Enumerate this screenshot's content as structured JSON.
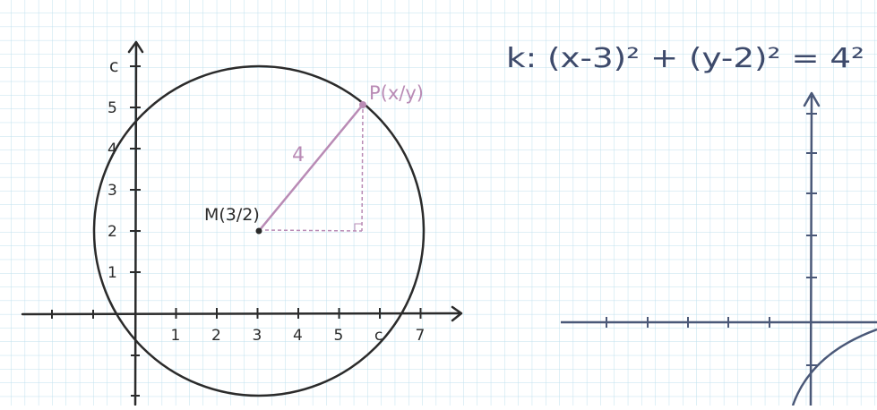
{
  "colors": {
    "background": "#ffffff",
    "grid": "#bfe0ee",
    "ink": "#2b2b2b",
    "axis_blue": "#4a5878",
    "accent": "#b98bb5",
    "equation": "#3d4a6b"
  },
  "left_figure": {
    "y_axis_label": "c",
    "x_ticks": [
      "1",
      "2",
      "3",
      "4",
      "5",
      "c",
      "7"
    ],
    "y_ticks": [
      "1",
      "2",
      "3",
      "4",
      "5"
    ],
    "center": {
      "label": "M(3/2)",
      "x": 3,
      "y": 2
    },
    "point": {
      "label": "P(x/y)",
      "x": 5.5,
      "y": 5
    },
    "radius": 4,
    "radius_label": "4"
  },
  "right_figure": {
    "equation": "k: (x-3)² + (y-2)² = 4²"
  }
}
